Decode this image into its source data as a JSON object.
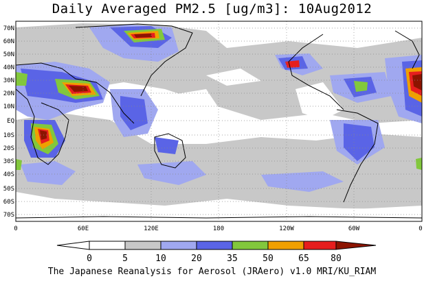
{
  "title": "Daily Averaged PM2.5 [ug/m3]: 10Aug2012",
  "footer": "The Japanese Reanalysis for Aerosol (JRAero) v1.0 MRI/KU_RIAM",
  "lat_labels": [
    "70N",
    "60N",
    "50N",
    "40N",
    "30N",
    "20N",
    "10N",
    "EQ",
    "10S",
    "20S",
    "30S",
    "40S",
    "50S",
    "60S",
    "70S"
  ],
  "lon_labels": [
    "0",
    "60E",
    "120E",
    "180",
    "120W",
    "60W",
    "0"
  ],
  "colorbar": {
    "ticks": [
      "0",
      "5",
      "10",
      "20",
      "35",
      "50",
      "65",
      "80"
    ],
    "colors": [
      "#ffffff",
      "#c8c8c8",
      "#a0a8f0",
      "#5a64e6",
      "#82c83c",
      "#f0a000",
      "#e61e1e",
      "#8c1400"
    ]
  }
}
